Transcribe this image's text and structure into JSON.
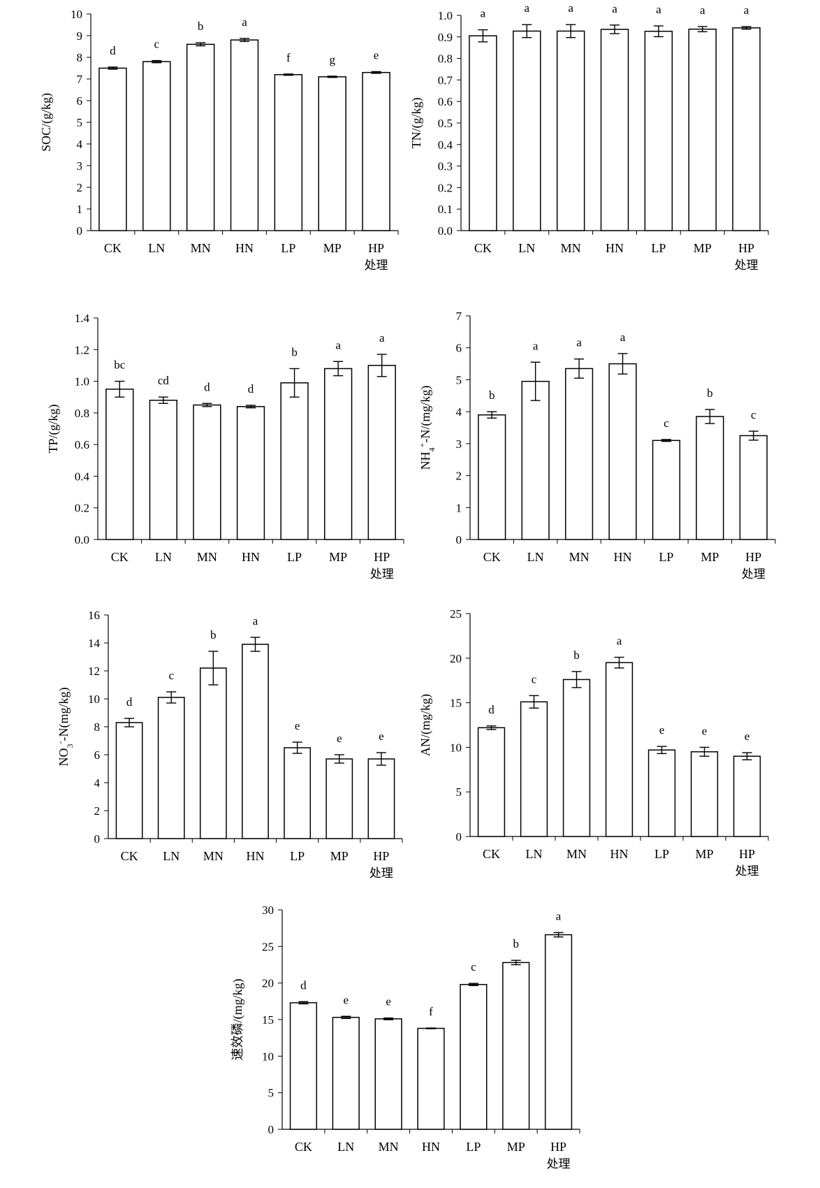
{
  "chart_data": [
    {
      "type": "bar",
      "title": "",
      "ylabel": "SOC/(g/kg)",
      "xlabel": "处理",
      "categories": [
        "CK",
        "LN",
        "MN",
        "HN",
        "LP",
        "MP",
        "HP"
      ],
      "values": [
        7.5,
        7.8,
        8.6,
        8.8,
        7.2,
        7.1,
        7.3
      ],
      "errors": [
        0.05,
        0.05,
        0.07,
        0.07,
        0.03,
        0.03,
        0.04
      ],
      "letters": [
        "d",
        "c",
        "b",
        "a",
        "f",
        "g",
        "e"
      ],
      "ylim": [
        0,
        10
      ],
      "ytick_labels": [
        "0",
        "1",
        "2",
        "3",
        "4",
        "5",
        "6",
        "7",
        "8",
        "9",
        "10"
      ]
    },
    {
      "type": "bar",
      "title": "",
      "ylabel": "TN/(g/kg)",
      "xlabel": "处理",
      "categories": [
        "CK",
        "LN",
        "MN",
        "HN",
        "LP",
        "MP",
        "HP"
      ],
      "values": [
        0.905,
        0.927,
        0.927,
        0.935,
        0.926,
        0.936,
        0.942
      ],
      "errors": [
        0.028,
        0.03,
        0.03,
        0.02,
        0.025,
        0.012,
        0.006
      ],
      "letters": [
        "a",
        "a",
        "a",
        "a",
        "a",
        "a",
        "a"
      ],
      "ylim": [
        0,
        1.0
      ],
      "ytick_labels": [
        "0.0",
        "0.1",
        "0.2",
        "0.3",
        "0.4",
        "0.5",
        "0.6",
        "0.7",
        "0.8",
        "0.9",
        "1.0"
      ]
    },
    {
      "type": "bar",
      "title": "",
      "ylabel": "TP/(g/kg)",
      "xlabel": "处理",
      "categories": [
        "CK",
        "LN",
        "MN",
        "HN",
        "LP",
        "MP",
        "HP"
      ],
      "values": [
        0.95,
        0.88,
        0.85,
        0.84,
        0.99,
        1.08,
        1.1
      ],
      "errors": [
        0.05,
        0.02,
        0.01,
        0.008,
        0.09,
        0.045,
        0.07
      ],
      "letters": [
        "bc",
        "cd",
        "d",
        "d",
        "b",
        "a",
        "a"
      ],
      "ylim": [
        0,
        1.4
      ],
      "ytick_labels": [
        "0.0",
        "0.2",
        "0.4",
        "0.6",
        "0.8",
        "1.0",
        "1.2",
        "1.4"
      ]
    },
    {
      "type": "bar",
      "title": "",
      "ylabel": "NH4+-N/(mg/kg)",
      "ylabel_parts": {
        "main": "NH",
        "sub": "4",
        "sup": "+",
        "rest": "-N/(mg/kg)"
      },
      "xlabel": "处理",
      "categories": [
        "CK",
        "LN",
        "MN",
        "HN",
        "LP",
        "MP",
        "HP"
      ],
      "values": [
        3.9,
        4.95,
        5.35,
        5.5,
        3.1,
        3.85,
        3.25
      ],
      "errors": [
        0.1,
        0.6,
        0.3,
        0.32,
        0.03,
        0.22,
        0.14
      ],
      "letters": [
        "b",
        "a",
        "a",
        "a",
        "c",
        "b",
        "c"
      ],
      "ylim": [
        0,
        7
      ],
      "ytick_labels": [
        "0",
        "1",
        "2",
        "3",
        "4",
        "5",
        "6",
        "7"
      ]
    },
    {
      "type": "bar",
      "title": "",
      "ylabel": "NO3--N(mg/kg)",
      "ylabel_parts": {
        "main": "NO",
        "sub": "3",
        "sup": "-",
        "rest": "-N(mg/kg)"
      },
      "xlabel": "处理",
      "categories": [
        "CK",
        "LN",
        "MN",
        "HN",
        "LP",
        "MP",
        "HP"
      ],
      "values": [
        8.3,
        10.1,
        12.2,
        13.9,
        6.5,
        5.7,
        5.7
      ],
      "errors": [
        0.3,
        0.4,
        1.2,
        0.5,
        0.4,
        0.3,
        0.45
      ],
      "letters": [
        "d",
        "c",
        "b",
        "a",
        "e",
        "e",
        "e"
      ],
      "ylim": [
        0,
        16
      ],
      "ytick_labels": [
        "0",
        "2",
        "4",
        "6",
        "8",
        "10",
        "12",
        "14",
        "16"
      ]
    },
    {
      "type": "bar",
      "title": "",
      "ylabel": "AN/(mg/kg)",
      "xlabel": "处理",
      "categories": [
        "CK",
        "LN",
        "MN",
        "HN",
        "LP",
        "MP",
        "HP"
      ],
      "values": [
        12.2,
        15.1,
        17.6,
        19.5,
        9.7,
        9.5,
        9.0
      ],
      "errors": [
        0.2,
        0.7,
        0.9,
        0.6,
        0.4,
        0.5,
        0.4
      ],
      "letters": [
        "d",
        "c",
        "b",
        "a",
        "e",
        "e",
        "e"
      ],
      "ylim": [
        0,
        25
      ],
      "ytick_labels": [
        "0",
        "5",
        "10",
        "15",
        "20",
        "25"
      ]
    },
    {
      "type": "bar",
      "title": "",
      "ylabel": "速效磷/(mg/kg)",
      "xlabel": "处理",
      "categories": [
        "CK",
        "LN",
        "MN",
        "HN",
        "LP",
        "MP",
        "HP"
      ],
      "values": [
        17.3,
        15.3,
        15.1,
        13.8,
        19.8,
        22.8,
        26.6
      ],
      "errors": [
        0.15,
        0.15,
        0.12,
        0.05,
        0.15,
        0.3,
        0.3
      ],
      "letters": [
        "d",
        "e",
        "e",
        "f",
        "c",
        "b",
        "a"
      ],
      "ylim": [
        0,
        30
      ],
      "ytick_labels": [
        "0",
        "5",
        "10",
        "15",
        "20",
        "25",
        "30"
      ]
    }
  ]
}
